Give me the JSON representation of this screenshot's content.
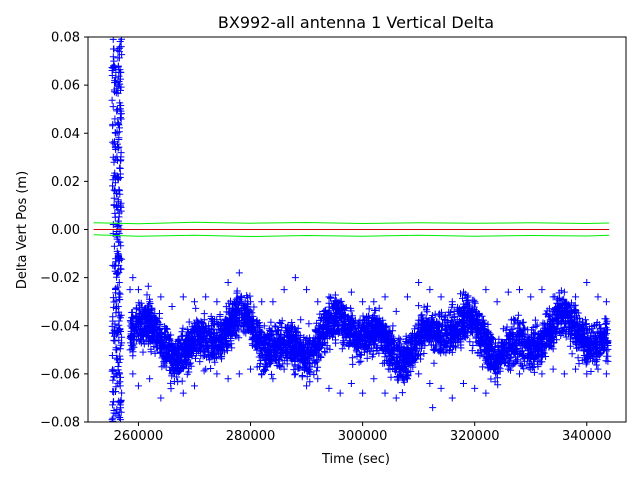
{
  "chart_data": {
    "type": "scatter",
    "title": "BX992-all antenna 1 Vertical Delta",
    "xlabel": "Time (sec)",
    "ylabel": "Delta Vert Pos (m)",
    "xlim": [
      251000,
      347000
    ],
    "ylim": [
      -0.08,
      0.08
    ],
    "x_ticks": [
      260000,
      280000,
      300000,
      320000,
      340000
    ],
    "x_tick_labels": [
      "260000",
      "280000",
      "300000",
      "320000",
      "340000"
    ],
    "y_ticks": [
      -0.08,
      -0.06,
      -0.04,
      -0.02,
      0.0,
      0.02,
      0.04,
      0.06,
      0.08
    ],
    "y_tick_labels": [
      "−0.08",
      "−0.06",
      "−0.04",
      "−0.02",
      "0.00",
      "0.02",
      "0.04",
      "0.06",
      "0.08"
    ],
    "grid": false,
    "series": [
      {
        "marker": "+",
        "color": "#0000ff",
        "points": [
          [
            255500,
            0.079
          ],
          [
            255600,
            0.07
          ],
          [
            255700,
            0.058
          ],
          [
            255800,
            0.046
          ],
          [
            255900,
            0.034
          ],
          [
            256000,
            0.022
          ],
          [
            256100,
            0.01
          ],
          [
            256200,
            -0.004
          ],
          [
            256300,
            -0.018
          ],
          [
            256400,
            -0.032
          ],
          [
            256500,
            -0.046
          ],
          [
            256600,
            -0.06
          ],
          [
            256700,
            -0.072
          ],
          [
            256800,
            -0.079
          ],
          [
            255550,
            0.075
          ],
          [
            255750,
            0.062
          ],
          [
            255950,
            0.04
          ],
          [
            256150,
            0.015
          ],
          [
            256350,
            -0.01
          ],
          [
            256550,
            -0.038
          ],
          [
            256750,
            -0.065
          ],
          [
            258500,
            -0.025
          ],
          [
            258500,
            -0.05
          ],
          [
            259000,
            -0.02
          ],
          [
            259000,
            -0.06
          ],
          [
            260000,
            -0.025
          ],
          [
            260000,
            -0.065
          ],
          [
            262000,
            -0.03
          ],
          [
            262000,
            -0.062
          ],
          [
            264000,
            -0.028
          ],
          [
            264000,
            -0.07
          ],
          [
            266000,
            -0.032
          ],
          [
            266000,
            -0.06
          ],
          [
            268000,
            -0.028
          ],
          [
            268000,
            -0.068
          ],
          [
            270000,
            -0.03
          ],
          [
            270000,
            -0.065
          ],
          [
            272000,
            -0.028
          ],
          [
            272000,
            -0.058
          ],
          [
            274000,
            -0.03
          ],
          [
            274000,
            -0.06
          ],
          [
            276000,
            -0.022
          ],
          [
            276000,
            -0.062
          ],
          [
            278000,
            -0.018
          ],
          [
            278000,
            -0.06
          ],
          [
            280000,
            -0.03
          ],
          [
            280000,
            -0.058
          ],
          [
            282000,
            -0.03
          ],
          [
            282000,
            -0.06
          ],
          [
            284000,
            -0.03
          ],
          [
            284000,
            -0.062
          ],
          [
            286000,
            -0.025
          ],
          [
            286000,
            -0.058
          ],
          [
            288000,
            -0.02
          ],
          [
            288000,
            -0.06
          ],
          [
            290000,
            -0.025
          ],
          [
            290000,
            -0.065
          ],
          [
            292000,
            -0.03
          ],
          [
            292000,
            -0.062
          ],
          [
            294000,
            -0.028
          ],
          [
            294000,
            -0.066
          ],
          [
            296000,
            -0.03
          ],
          [
            296000,
            -0.068
          ],
          [
            298000,
            -0.026
          ],
          [
            298000,
            -0.064
          ],
          [
            300000,
            -0.03
          ],
          [
            300000,
            -0.068
          ],
          [
            302000,
            -0.03
          ],
          [
            302000,
            -0.062
          ],
          [
            304000,
            -0.028
          ],
          [
            304000,
            -0.068
          ],
          [
            306000,
            -0.034
          ],
          [
            306000,
            -0.07
          ],
          [
            308000,
            -0.028
          ],
          [
            308000,
            -0.062
          ],
          [
            310000,
            -0.022
          ],
          [
            310000,
            -0.06
          ],
          [
            312000,
            -0.025
          ],
          [
            312000,
            -0.064
          ],
          [
            314000,
            -0.028
          ],
          [
            314000,
            -0.066
          ],
          [
            316000,
            -0.03
          ],
          [
            316000,
            -0.07
          ],
          [
            318000,
            -0.026
          ],
          [
            318000,
            -0.064
          ],
          [
            320000,
            -0.03
          ],
          [
            320000,
            -0.066
          ],
          [
            322000,
            -0.025
          ],
          [
            322000,
            -0.068
          ],
          [
            324000,
            -0.03
          ],
          [
            324000,
            -0.06
          ],
          [
            326000,
            -0.026
          ],
          [
            326000,
            -0.058
          ],
          [
            328000,
            -0.025
          ],
          [
            328000,
            -0.06
          ],
          [
            330000,
            -0.028
          ],
          [
            330000,
            -0.058
          ],
          [
            332000,
            -0.025
          ],
          [
            332000,
            -0.06
          ],
          [
            334000,
            -0.028
          ],
          [
            334000,
            -0.058
          ],
          [
            336000,
            -0.026
          ],
          [
            336000,
            -0.06
          ],
          [
            338000,
            -0.028
          ],
          [
            338000,
            -0.058
          ],
          [
            340000,
            -0.022
          ],
          [
            340000,
            -0.06
          ],
          [
            342000,
            -0.028
          ],
          [
            342000,
            -0.058
          ],
          [
            343500,
            -0.03
          ],
          [
            343500,
            -0.06
          ],
          [
            312500,
            -0.074
          ]
        ]
      },
      {
        "type": "band-upper",
        "color": "#00ee00",
        "x": [
          252000,
          260000,
          270000,
          280000,
          290000,
          300000,
          310000,
          320000,
          330000,
          340000,
          344000
        ],
        "y": [
          0.0028,
          0.0024,
          0.003,
          0.0026,
          0.0029,
          0.0025,
          0.0028,
          0.0026,
          0.0028,
          0.0025,
          0.0027
        ]
      },
      {
        "type": "band-lower",
        "color": "#00ee00",
        "x": [
          252000,
          260000,
          270000,
          280000,
          290000,
          300000,
          310000,
          320000,
          330000,
          340000,
          344000
        ],
        "y": [
          -0.0022,
          -0.0028,
          -0.0024,
          -0.0029,
          -0.0025,
          -0.0028,
          -0.0024,
          -0.0028,
          -0.0025,
          -0.0027,
          -0.0024
        ]
      },
      {
        "type": "center-line",
        "color": "#cc0000",
        "x": [
          252000,
          344000
        ],
        "y": [
          0.0,
          0.0
        ]
      }
    ]
  }
}
